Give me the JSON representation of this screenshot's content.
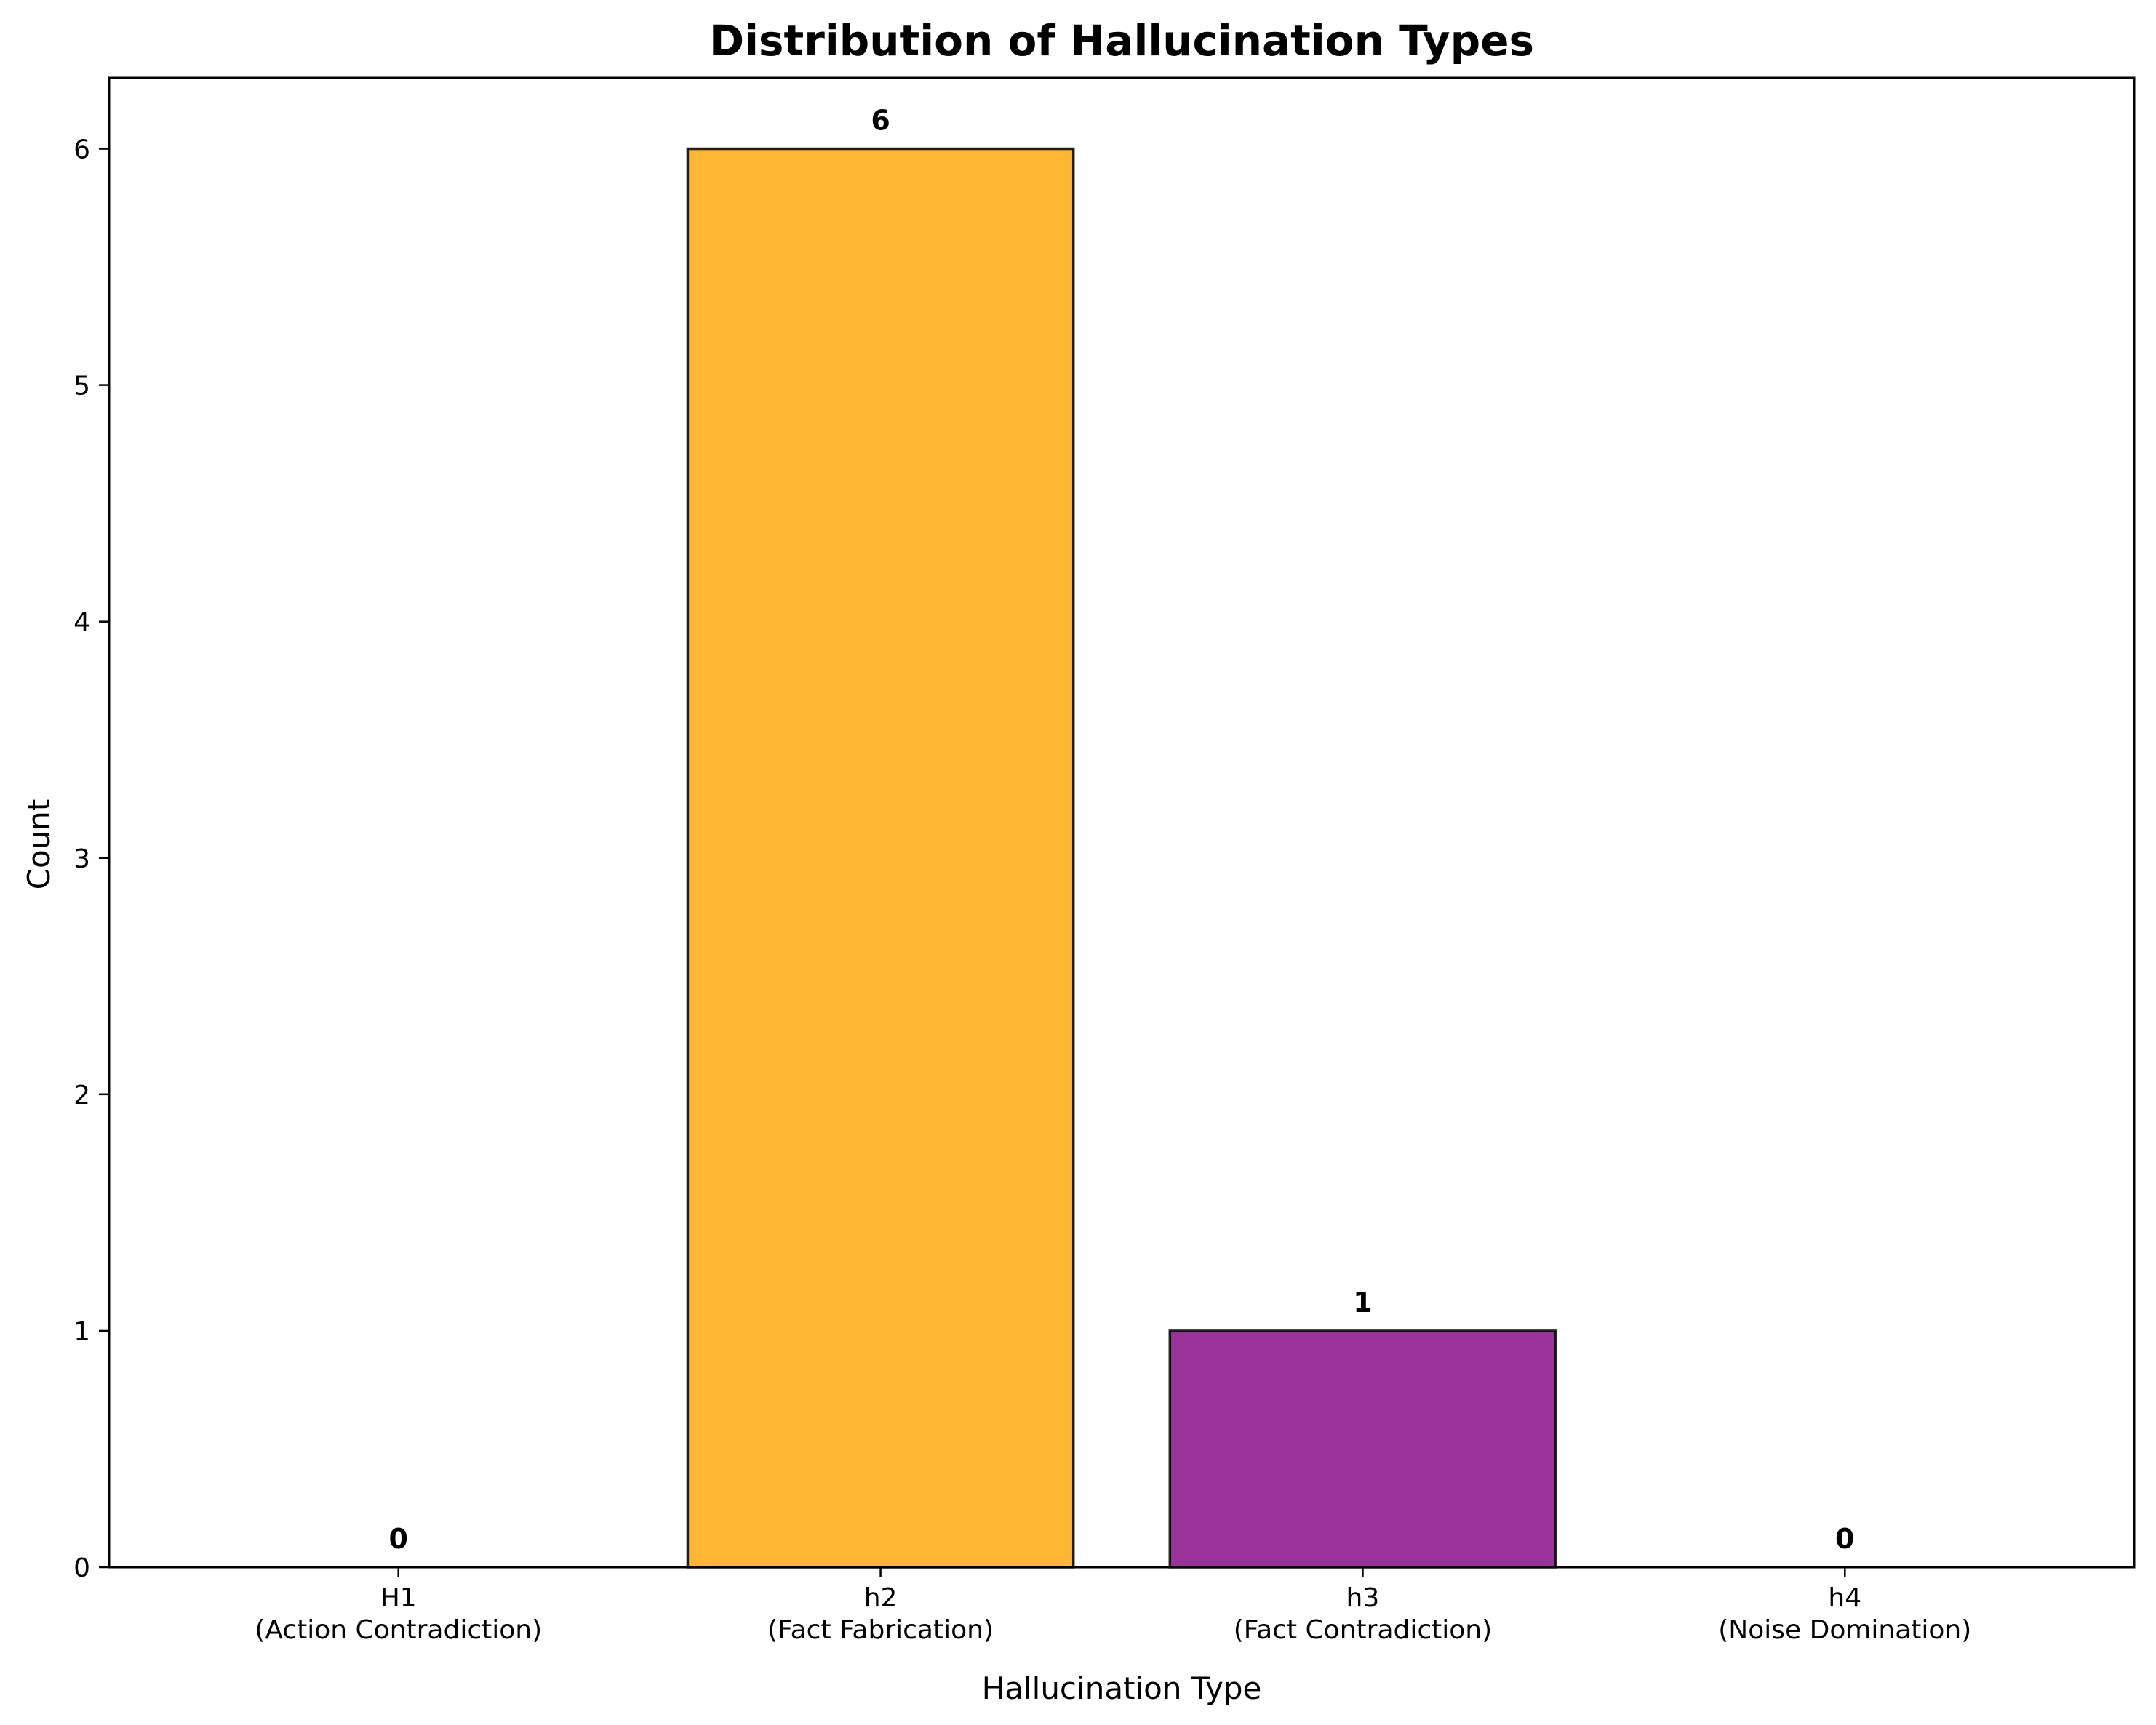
{
  "chart_data": {
    "type": "bar",
    "title": "Distribution of Hallucination Types",
    "xlabel": "Hallucination Type",
    "ylabel": "Count",
    "categories": [
      {
        "code": "H1",
        "desc": "(Action Contradiction)"
      },
      {
        "code": "h2",
        "desc": "(Fact Fabrication)"
      },
      {
        "code": "h3",
        "desc": "(Fact Contradiction)"
      },
      {
        "code": "h4",
        "desc": "(Noise Domination)"
      }
    ],
    "values": [
      0,
      6,
      1,
      0
    ],
    "data_labels": [
      "0",
      "6",
      "1",
      "0"
    ],
    "colors": [
      "#FF6B6B",
      "#FFA500",
      "#800080",
      "#4ECDC4"
    ],
    "bar_alpha": 0.8,
    "edge_color": "#000000",
    "ylim": [
      0,
      6.3
    ],
    "yticks": [
      0,
      1,
      2,
      3,
      4,
      5,
      6
    ],
    "grid": false,
    "legend": false
  }
}
